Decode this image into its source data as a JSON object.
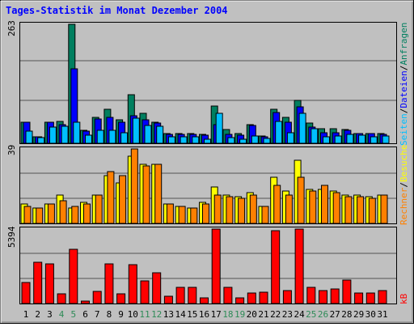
{
  "chart_data": [
    {
      "type": "bar",
      "panel": "top",
      "title": "Tages-Statistik im Monat Dezember 2004",
      "ymax_label": "263",
      "ylim": [
        0,
        263
      ],
      "grid": true,
      "categories": [
        "1",
        "2",
        "3",
        "4",
        "5",
        "6",
        "7",
        "8",
        "9",
        "10",
        "11",
        "12",
        "13",
        "14",
        "15",
        "16",
        "17",
        "18",
        "19",
        "20",
        "21",
        "22",
        "23",
        "24",
        "25",
        "26",
        "27",
        "28",
        "29",
        "30",
        "31"
      ],
      "highlight_days": [
        "4",
        "5",
        "11",
        "12",
        "18",
        "19",
        "25",
        "26"
      ],
      "legend_right": [
        "Anfragen",
        "/",
        "Dateien",
        "/",
        "Seiten"
      ],
      "series": [
        {
          "name": "Anfragen",
          "color": "#007f5f",
          "values": [
            47,
            15,
            47,
            48,
            263,
            28,
            57,
            75,
            52,
            108,
            66,
            46,
            22,
            22,
            22,
            19,
            82,
            31,
            22,
            41,
            16,
            75,
            57,
            95,
            44,
            33,
            32,
            31,
            22,
            22,
            22
          ]
        },
        {
          "name": "Dateien",
          "color": "#0000ff",
          "values": [
            46,
            15,
            47,
            42,
            164,
            26,
            54,
            57,
            47,
            60,
            52,
            44,
            19,
            19,
            20,
            17,
            41,
            20,
            18,
            40,
            14,
            68,
            47,
            80,
            36,
            23,
            24,
            28,
            21,
            21,
            20
          ]
        },
        {
          "name": "Seiten",
          "color": "#00bfff",
          "values": [
            27,
            13,
            36,
            38,
            47,
            17,
            28,
            28,
            23,
            56,
            40,
            38,
            15,
            14,
            15,
            9,
            67,
            13,
            9,
            16,
            10,
            49,
            23,
            67,
            32,
            15,
            16,
            20,
            17,
            15,
            16
          ]
        }
      ]
    },
    {
      "type": "bar",
      "panel": "middle",
      "ymax_label": "39",
      "ylim": [
        0,
        39
      ],
      "grid": true,
      "categories": [
        "1",
        "2",
        "3",
        "4",
        "5",
        "6",
        "7",
        "8",
        "9",
        "10",
        "11",
        "12",
        "13",
        "14",
        "15",
        "16",
        "17",
        "18",
        "19",
        "20",
        "21",
        "22",
        "23",
        "24",
        "25",
        "26",
        "27",
        "28",
        "29",
        "30",
        "31"
      ],
      "legend_right": [
        "Rechner",
        "/",
        "Besuche"
      ],
      "series": [
        {
          "name": "Besuche",
          "color": "#ffff00",
          "values": [
            10,
            8,
            10,
            15,
            8,
            11,
            15,
            25,
            21,
            35,
            31,
            31,
            10,
            9,
            8,
            11,
            19,
            15,
            14,
            16,
            9,
            24,
            17,
            33,
            18,
            18,
            17,
            15,
            15,
            14,
            15
          ]
        },
        {
          "name": "Rechner",
          "color": "#ff8000",
          "values": [
            9,
            8,
            10,
            12,
            9,
            10,
            15,
            27,
            25,
            39,
            30,
            31,
            10,
            9,
            8,
            10,
            15,
            14,
            13,
            15,
            9,
            20,
            15,
            24,
            17,
            20,
            16,
            14,
            14,
            13,
            15
          ]
        }
      ]
    },
    {
      "type": "bar",
      "panel": "bottom",
      "ymax_label": "5394",
      "ylim": [
        0,
        5394
      ],
      "grid": true,
      "categories": [
        "1",
        "2",
        "3",
        "4",
        "5",
        "6",
        "7",
        "8",
        "9",
        "10",
        "11",
        "12",
        "13",
        "14",
        "15",
        "16",
        "17",
        "18",
        "19",
        "20",
        "21",
        "22",
        "23",
        "24",
        "25",
        "26",
        "27",
        "28",
        "29",
        "30",
        "31"
      ],
      "legend_right": [
        "kB"
      ],
      "series": [
        {
          "name": "kB",
          "color": "#ff0000",
          "values": [
            1500,
            3000,
            2900,
            700,
            3900,
            150,
            900,
            2900,
            700,
            2800,
            1650,
            2200,
            500,
            1150,
            1200,
            400,
            5394,
            1200,
            400,
            750,
            800,
            5300,
            950,
            5394,
            1150,
            950,
            1050,
            1700,
            750,
            750,
            950
          ]
        }
      ]
    }
  ]
}
